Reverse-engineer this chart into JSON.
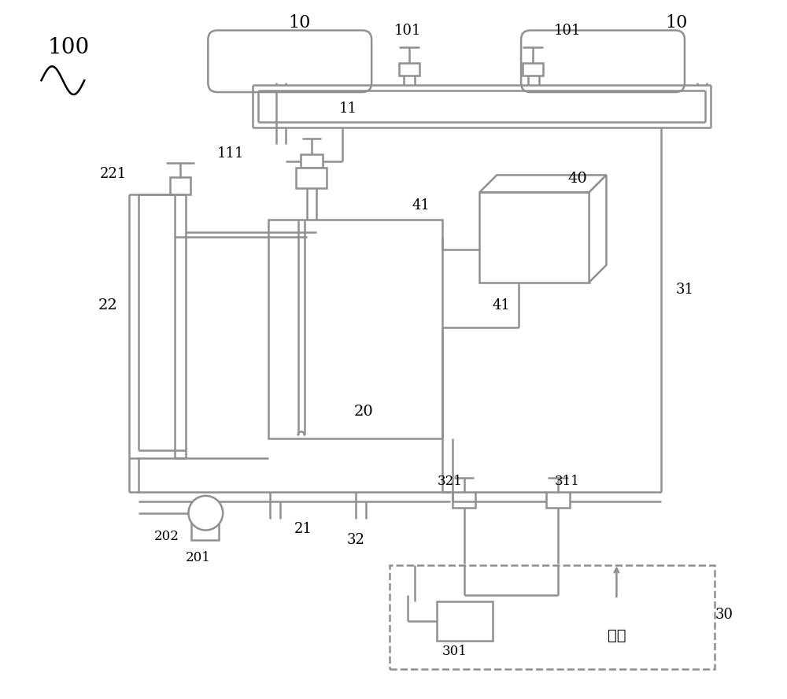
{
  "bg_color": "#ffffff",
  "lc": "#909090",
  "tc": "#000000",
  "lw": 1.8
}
